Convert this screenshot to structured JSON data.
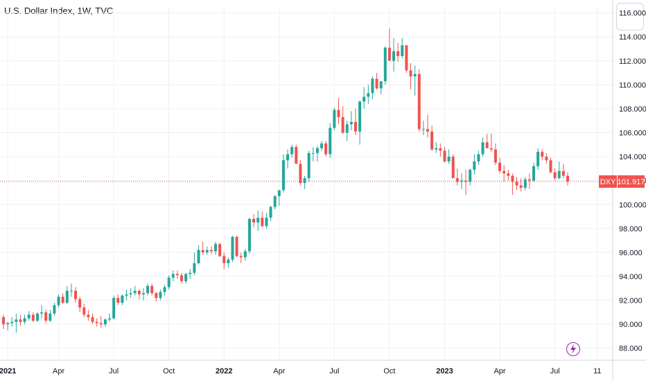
{
  "header": {
    "title": "U.S. Dollar Index, 1W, TVC"
  },
  "colors": {
    "up": "#26a69a",
    "down": "#ef5350",
    "grid": "#eef0f3",
    "price_line": "#ef5350"
  },
  "icons": {
    "top_right": "chart-logo-button",
    "bottom": "lightning-icon"
  },
  "chart_data": {
    "type": "candlestick",
    "symbol": "DXY",
    "interval": "1W",
    "last_price": 101.917,
    "last_price_label": "101.917",
    "ylim": [
      87.0,
      116.5
    ],
    "y_ticks": [
      {
        "value": 88,
        "label": "88.000"
      },
      {
        "value": 90,
        "label": "90.000"
      },
      {
        "value": 92,
        "label": "92.000"
      },
      {
        "value": 94,
        "label": "94.000"
      },
      {
        "value": 96,
        "label": "96.000"
      },
      {
        "value": 98,
        "label": "98.000"
      },
      {
        "value": 100,
        "label": "100.000"
      },
      {
        "value": 102,
        "label": "102.000"
      },
      {
        "value": 104,
        "label": "104.000"
      },
      {
        "value": 106,
        "label": "106.000"
      },
      {
        "value": 108,
        "label": "108.000"
      },
      {
        "value": 110,
        "label": "110.000"
      },
      {
        "value": 112,
        "label": "112.000"
      },
      {
        "value": 114,
        "label": "114.000"
      },
      {
        "value": 116,
        "label": "116.000"
      }
    ],
    "x_ticks": [
      {
        "index": 1,
        "label": "2021",
        "bold": true
      },
      {
        "index": 13,
        "label": "Apr",
        "bold": false
      },
      {
        "index": 26,
        "label": "Jul",
        "bold": false
      },
      {
        "index": 39,
        "label": "Oct",
        "bold": false
      },
      {
        "index": 52,
        "label": "2022",
        "bold": true
      },
      {
        "index": 65,
        "label": "Apr",
        "bold": false
      },
      {
        "index": 78,
        "label": "Jul",
        "bold": false
      },
      {
        "index": 91,
        "label": "Oct",
        "bold": false
      },
      {
        "index": 104,
        "label": "2023",
        "bold": true
      },
      {
        "index": 117,
        "label": "Apr",
        "bold": false
      },
      {
        "index": 130,
        "label": "Jul",
        "bold": false
      },
      {
        "index": 140,
        "label": "11",
        "bold": false
      }
    ],
    "candles": [
      [
        90.6,
        90.8,
        89.6,
        90.0
      ],
      [
        90.0,
        90.2,
        89.5,
        90.1
      ],
      [
        90.1,
        90.6,
        89.8,
        90.2
      ],
      [
        90.2,
        90.9,
        89.3,
        90.4
      ],
      [
        90.4,
        90.8,
        89.9,
        90.2
      ],
      [
        90.2,
        90.8,
        90.0,
        90.5
      ],
      [
        90.5,
        91.1,
        90.3,
        90.8
      ],
      [
        90.8,
        91.0,
        90.2,
        90.3
      ],
      [
        90.3,
        91.0,
        90.2,
        90.9
      ],
      [
        90.9,
        91.6,
        90.5,
        91.0
      ],
      [
        91.0,
        91.2,
        90.1,
        90.3
      ],
      [
        90.3,
        91.2,
        90.2,
        90.9
      ],
      [
        90.9,
        91.8,
        90.7,
        91.6
      ],
      [
        91.6,
        92.5,
        91.4,
        92.3
      ],
      [
        92.3,
        92.6,
        91.7,
        91.8
      ],
      [
        91.8,
        93.2,
        91.7,
        92.8
      ],
      [
        92.8,
        93.4,
        92.3,
        92.8
      ],
      [
        92.8,
        93.1,
        91.8,
        92.1
      ],
      [
        92.1,
        92.3,
        91.0,
        91.4
      ],
      [
        91.4,
        91.7,
        90.6,
        90.8
      ],
      [
        90.8,
        91.2,
        90.3,
        90.6
      ],
      [
        90.6,
        90.9,
        90.0,
        90.2
      ],
      [
        90.2,
        90.5,
        89.8,
        90.1
      ],
      [
        90.1,
        90.7,
        89.7,
        90.0
      ],
      [
        90.0,
        90.5,
        89.8,
        90.4
      ],
      [
        90.4,
        90.9,
        90.2,
        90.5
      ],
      [
        90.5,
        92.4,
        90.4,
        92.2
      ],
      [
        92.2,
        92.5,
        91.6,
        91.8
      ],
      [
        91.8,
        92.5,
        91.6,
        92.4
      ],
      [
        92.4,
        92.9,
        92.0,
        92.5
      ],
      [
        92.5,
        93.0,
        92.2,
        92.6
      ],
      [
        92.6,
        93.2,
        92.4,
        92.8
      ],
      [
        92.8,
        92.9,
        92.1,
        92.5
      ],
      [
        92.5,
        93.0,
        92.0,
        92.6
      ],
      [
        92.6,
        93.4,
        92.4,
        93.2
      ],
      [
        93.2,
        93.4,
        92.4,
        92.6
      ],
      [
        92.6,
        92.7,
        91.9,
        92.2
      ],
      [
        92.2,
        92.9,
        92.0,
        92.7
      ],
      [
        92.7,
        93.3,
        92.4,
        93.1
      ],
      [
        93.1,
        94.1,
        92.9,
        93.9
      ],
      [
        93.9,
        94.5,
        93.6,
        94.2
      ],
      [
        94.2,
        94.5,
        93.8,
        94.1
      ],
      [
        94.1,
        94.3,
        93.4,
        93.6
      ],
      [
        93.6,
        94.3,
        93.4,
        94.2
      ],
      [
        94.2,
        94.6,
        93.8,
        94.3
      ],
      [
        94.3,
        96.0,
        94.1,
        95.1
      ],
      [
        95.1,
        96.6,
        95.0,
        96.2
      ],
      [
        96.2,
        96.9,
        95.8,
        96.0
      ],
      [
        96.0,
        96.5,
        95.8,
        96.2
      ],
      [
        96.2,
        96.5,
        95.9,
        96.1
      ],
      [
        96.1,
        96.9,
        95.8,
        96.7
      ],
      [
        96.7,
        96.8,
        95.6,
        95.7
      ],
      [
        95.7,
        96.0,
        94.6,
        95.1
      ],
      [
        95.1,
        95.6,
        94.7,
        95.4
      ],
      [
        95.4,
        97.4,
        95.2,
        97.3
      ],
      [
        97.3,
        97.4,
        95.6,
        95.7
      ],
      [
        95.7,
        96.0,
        95.1,
        95.6
      ],
      [
        95.6,
        96.3,
        95.3,
        96.1
      ],
      [
        96.1,
        98.9,
        95.9,
        98.8
      ],
      [
        98.8,
        99.2,
        98.1,
        98.5
      ],
      [
        98.5,
        99.5,
        97.8,
        98.9
      ],
      [
        98.9,
        99.4,
        98.1,
        98.2
      ],
      [
        98.2,
        99.3,
        98.0,
        98.9
      ],
      [
        98.9,
        99.9,
        98.6,
        99.8
      ],
      [
        99.8,
        100.8,
        99.6,
        100.7
      ],
      [
        100.7,
        101.1,
        99.9,
        101.2
      ],
      [
        101.2,
        104.2,
        101.0,
        103.7
      ],
      [
        103.7,
        104.6,
        103.0,
        104.2
      ],
      [
        104.2,
        105.0,
        103.9,
        104.8
      ],
      [
        104.8,
        105.0,
        103.4,
        103.4
      ],
      [
        103.4,
        103.7,
        101.6,
        101.8
      ],
      [
        101.8,
        102.4,
        101.3,
        102.2
      ],
      [
        102.2,
        104.5,
        101.9,
        104.3
      ],
      [
        104.3,
        104.8,
        103.6,
        104.3
      ],
      [
        104.3,
        104.9,
        103.6,
        104.7
      ],
      [
        104.7,
        105.3,
        104.5,
        105.1
      ],
      [
        105.1,
        105.3,
        104.0,
        104.2
      ],
      [
        104.2,
        106.8,
        103.9,
        106.4
      ],
      [
        106.4,
        108.1,
        106.2,
        107.9
      ],
      [
        107.9,
        108.9,
        106.7,
        107.3
      ],
      [
        107.3,
        108.2,
        105.9,
        106.0
      ],
      [
        106.0,
        107.0,
        105.3,
        106.7
      ],
      [
        106.7,
        107.8,
        106.2,
        106.9
      ],
      [
        106.9,
        108.0,
        105.8,
        106.1
      ],
      [
        106.1,
        108.7,
        105.0,
        108.6
      ],
      [
        108.6,
        109.8,
        108.0,
        109.0
      ],
      [
        109.0,
        110.0,
        108.4,
        109.3
      ],
      [
        109.3,
        110.7,
        108.8,
        110.5
      ],
      [
        110.5,
        111.0,
        109.6,
        109.7
      ],
      [
        109.7,
        110.2,
        109.2,
        110.3
      ],
      [
        110.3,
        113.2,
        110.0,
        113.1
      ],
      [
        113.1,
        114.7,
        112.1,
        112.0
      ],
      [
        112.0,
        113.9,
        111.1,
        112.8
      ],
      [
        112.8,
        113.5,
        111.9,
        112.4
      ],
      [
        112.4,
        113.9,
        112.2,
        113.3
      ],
      [
        113.3,
        113.3,
        111.0,
        111.2
      ],
      [
        111.2,
        111.8,
        109.6,
        110.7
      ],
      [
        110.7,
        111.6,
        109.1,
        110.9
      ],
      [
        110.9,
        111.3,
        106.1,
        106.3
      ],
      [
        106.3,
        107.0,
        105.8,
        106.3
      ],
      [
        106.3,
        107.5,
        105.6,
        106.1
      ],
      [
        106.1,
        106.6,
        104.5,
        104.6
      ],
      [
        104.6,
        105.2,
        104.3,
        104.7
      ],
      [
        104.7,
        105.1,
        104.0,
        104.5
      ],
      [
        104.5,
        104.8,
        103.5,
        103.6
      ],
      [
        103.6,
        104.6,
        103.4,
        104.0
      ],
      [
        104.0,
        104.2,
        102.3,
        102.2
      ],
      [
        102.2,
        103.0,
        101.6,
        101.9
      ],
      [
        101.9,
        102.6,
        101.3,
        102.0
      ],
      [
        102.0,
        102.9,
        100.8,
        101.9
      ],
      [
        101.9,
        103.0,
        101.6,
        102.9
      ],
      [
        102.9,
        104.2,
        102.5,
        103.6
      ],
      [
        103.6,
        104.5,
        103.3,
        104.2
      ],
      [
        104.2,
        105.6,
        104.0,
        105.2
      ],
      [
        105.2,
        105.9,
        104.9,
        104.7
      ],
      [
        104.7,
        105.9,
        104.4,
        104.6
      ],
      [
        104.6,
        105.1,
        103.3,
        103.5
      ],
      [
        103.5,
        103.9,
        102.6,
        102.8
      ],
      [
        102.8,
        103.3,
        101.9,
        102.6
      ],
      [
        102.6,
        102.9,
        102.0,
        102.4
      ],
      [
        102.4,
        102.6,
        100.8,
        101.9
      ],
      [
        101.9,
        102.3,
        101.2,
        101.6
      ],
      [
        101.6,
        102.2,
        101.1,
        101.4
      ],
      [
        101.4,
        102.3,
        101.2,
        102.1
      ],
      [
        102.1,
        102.6,
        101.3,
        102.0
      ],
      [
        102.0,
        103.5,
        101.9,
        103.2
      ],
      [
        103.2,
        104.7,
        102.9,
        104.4
      ],
      [
        104.4,
        104.6,
        103.7,
        104.0
      ],
      [
        104.0,
        104.3,
        103.4,
        103.7
      ],
      [
        103.7,
        103.9,
        102.6,
        102.7
      ],
      [
        102.7,
        103.0,
        102.0,
        102.2
      ],
      [
        102.2,
        103.6,
        102.1,
        102.8
      ],
      [
        102.8,
        103.4,
        102.2,
        102.4
      ],
      [
        102.4,
        102.7,
        101.6,
        101.917
      ]
    ]
  }
}
